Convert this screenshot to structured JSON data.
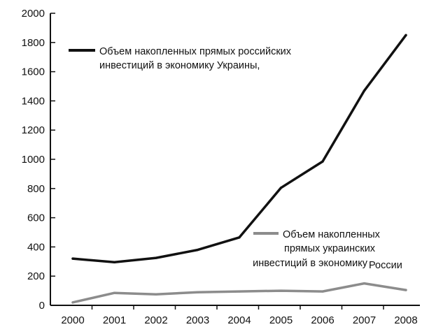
{
  "chart_data": {
    "type": "line",
    "title": "",
    "xlabel": "",
    "ylabel": "",
    "x": [
      "2000",
      "2001",
      "2002",
      "2003",
      "2004",
      "2005",
      "2006",
      "2007",
      "2008"
    ],
    "ylim": [
      0,
      2000
    ],
    "yticks": [
      "0",
      "200",
      "400",
      "600",
      "800",
      "1000",
      "1200",
      "1400",
      "1600",
      "1800",
      "2000"
    ],
    "grid": false,
    "series": [
      {
        "name": "Объем накопленных прямых российских инвестиций в экономику Украины,",
        "name_lines": [
          "Объем накопленных прямых российских",
          "инвестиций в экономику  Украины,"
        ],
        "color": "#111111",
        "values": [
          320,
          295,
          325,
          380,
          465,
          805,
          985,
          1470,
          1850
        ]
      },
      {
        "name": "Объем накопленных прямых украинских инвестиций в экономику России",
        "name_lines": [
          "Объем накопленных",
          "прямых украинских",
          "инвестиций в экономику",
          "России"
        ],
        "color": "#8c8c8c",
        "values": [
          20,
          85,
          75,
          90,
          95,
          100,
          95,
          150,
          105
        ]
      }
    ],
    "legend_placement": [
      "upper-left",
      "right-of-center"
    ]
  }
}
